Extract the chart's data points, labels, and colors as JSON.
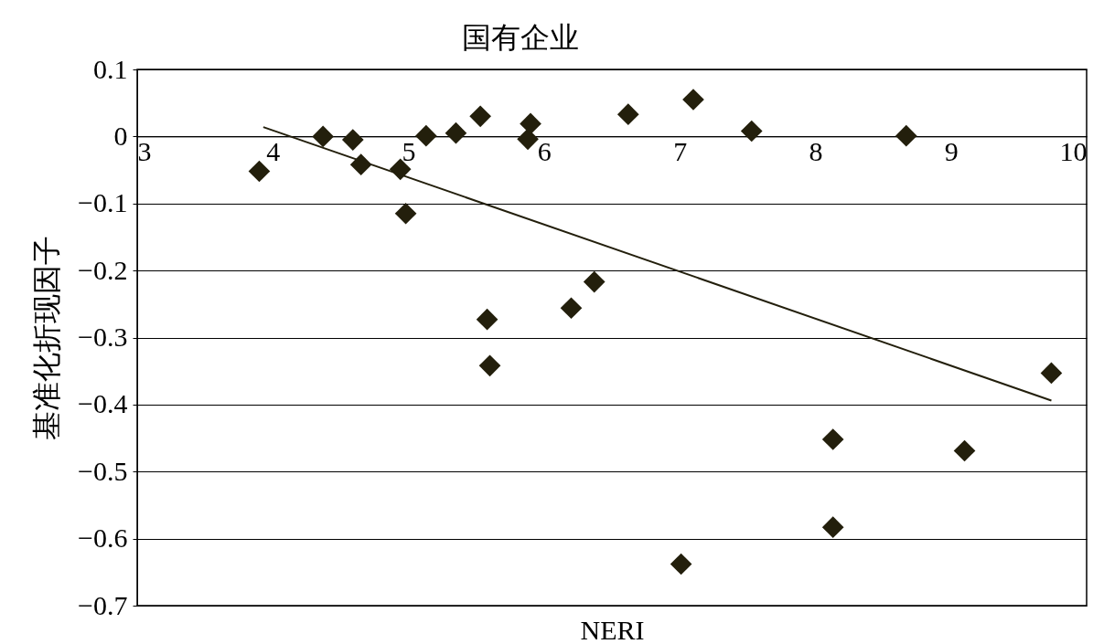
{
  "chart_data": {
    "type": "scatter",
    "title": "国有企业",
    "xlabel": "NERI",
    "ylabel": "基准化折现因子",
    "xlim": [
      3,
      10
    ],
    "xticks": [
      3,
      4,
      5,
      6,
      7,
      8,
      9,
      10
    ],
    "ylim": [
      -0.7,
      0.1
    ],
    "yticks": [
      0.1,
      0,
      -0.1,
      -0.2,
      -0.3,
      -0.4,
      -0.5,
      -0.6,
      -0.7
    ],
    "grid": "y",
    "series": [
      {
        "marker": "diamond",
        "color": "#231f0c",
        "x": [
          3.9,
          4.37,
          4.59,
          4.65,
          4.94,
          4.98,
          5.13,
          5.35,
          5.53,
          5.58,
          5.6,
          5.88,
          5.9,
          6.2,
          6.37,
          6.62,
          7.1,
          7.53,
          7.01,
          8.13,
          8.13,
          8.67,
          9.1,
          9.74
        ],
        "values": [
          -0.052,
          0,
          -0.005,
          -0.042,
          -0.049,
          -0.115,
          0.001,
          0.005,
          0.03,
          -0.273,
          -0.342,
          -0.004,
          0.019,
          -0.256,
          -0.217,
          0.033,
          0.055,
          0.008,
          -0.638,
          -0.452,
          -0.583,
          0.001,
          -0.469,
          -0.353
        ]
      },
      {
        "type": "line",
        "color": "#231f0c",
        "x": [
          3.93,
          9.74
        ],
        "values": [
          0.014,
          -0.394
        ]
      }
    ]
  }
}
